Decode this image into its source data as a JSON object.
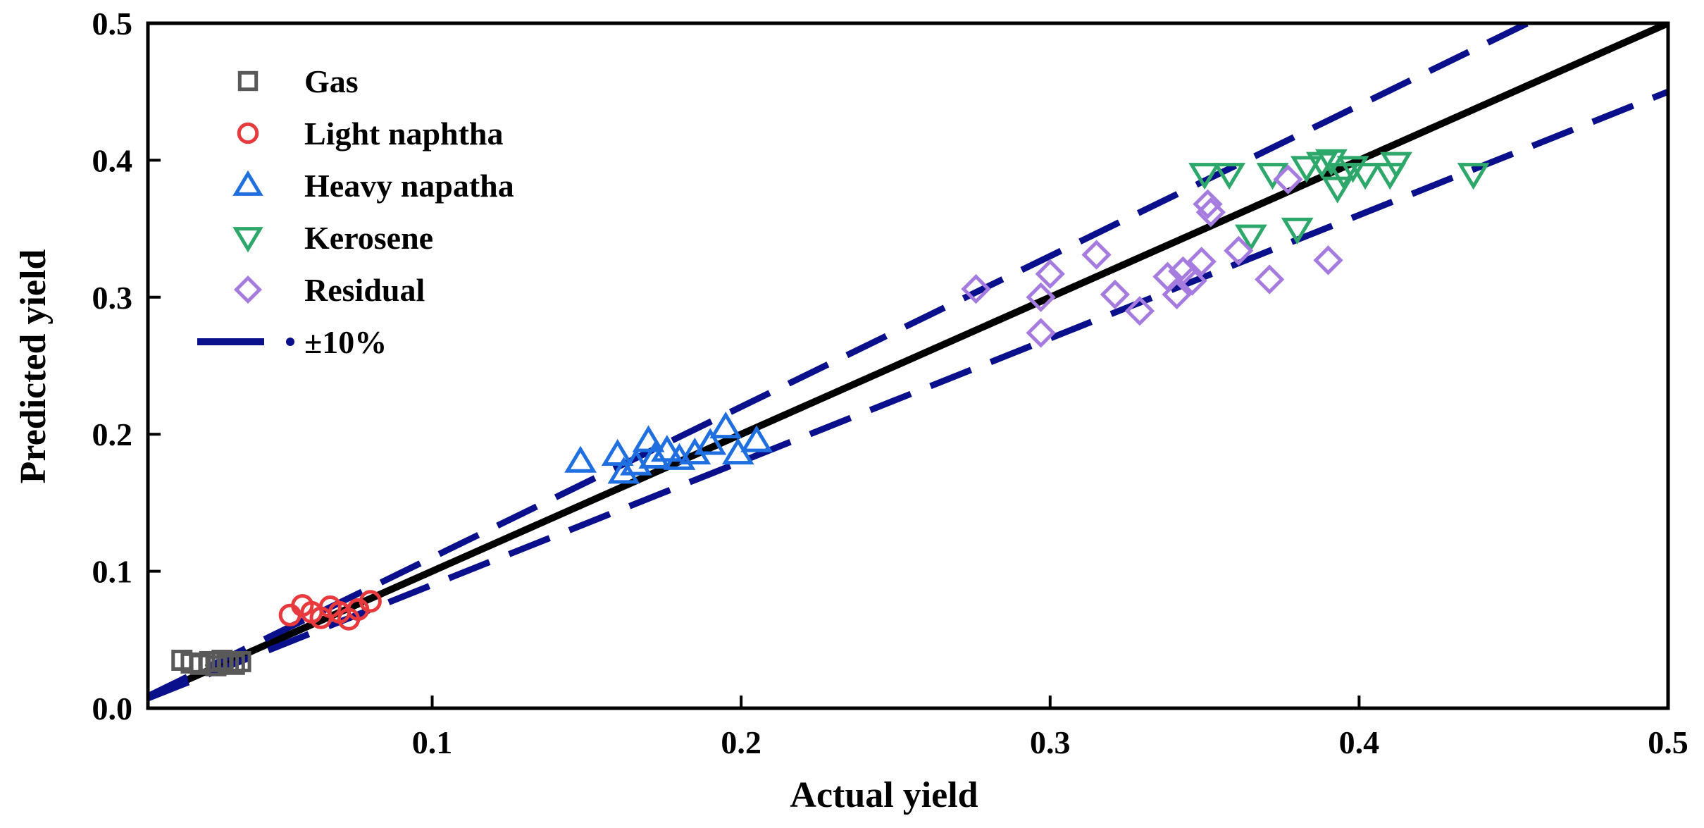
{
  "chart_data": {
    "type": "scatter",
    "xlabel": "Actual yield",
    "ylabel": "Predicted yield",
    "xlim": [
      0.008,
      0.5
    ],
    "ylim": [
      0.0,
      0.5
    ],
    "xticks": [
      {
        "value": 0.1,
        "label": "0.1"
      },
      {
        "value": 0.2,
        "label": "0.2"
      },
      {
        "value": 0.3,
        "label": "0.3"
      },
      {
        "value": 0.4,
        "label": "0.4"
      },
      {
        "value": 0.5,
        "label": "0.5"
      }
    ],
    "yticks": [
      {
        "value": 0.0,
        "label": "0.0"
      },
      {
        "value": 0.1,
        "label": "0.1"
      },
      {
        "value": 0.2,
        "label": "0.2"
      },
      {
        "value": 0.3,
        "label": "0.3"
      },
      {
        "value": 0.4,
        "label": "0.4"
      },
      {
        "value": 0.5,
        "label": "0.5"
      }
    ],
    "legend_position": "top-left",
    "series": [
      {
        "name": "Gas",
        "marker": "square",
        "color": "#595959",
        "points": [
          [
            0.019,
            0.035
          ],
          [
            0.022,
            0.033
          ],
          [
            0.025,
            0.032
          ],
          [
            0.028,
            0.034
          ],
          [
            0.03,
            0.031
          ],
          [
            0.032,
            0.035
          ],
          [
            0.034,
            0.033
          ],
          [
            0.036,
            0.032
          ],
          [
            0.038,
            0.034
          ]
        ]
      },
      {
        "name": "Light naphtha",
        "marker": "circle",
        "color": "#e8393c",
        "points": [
          [
            0.054,
            0.068
          ],
          [
            0.058,
            0.075
          ],
          [
            0.061,
            0.07
          ],
          [
            0.064,
            0.066
          ],
          [
            0.067,
            0.074
          ],
          [
            0.07,
            0.07
          ],
          [
            0.073,
            0.065
          ],
          [
            0.076,
            0.072
          ],
          [
            0.08,
            0.078
          ]
        ]
      },
      {
        "name": "Heavy napatha",
        "marker": "triangle-up",
        "color": "#1f6fe0",
        "points": [
          [
            0.148,
            0.18
          ],
          [
            0.16,
            0.185
          ],
          [
            0.162,
            0.172
          ],
          [
            0.166,
            0.178
          ],
          [
            0.17,
            0.195
          ],
          [
            0.172,
            0.183
          ],
          [
            0.176,
            0.188
          ],
          [
            0.18,
            0.182
          ],
          [
            0.185,
            0.186
          ],
          [
            0.19,
            0.193
          ],
          [
            0.195,
            0.205
          ],
          [
            0.199,
            0.186
          ],
          [
            0.205,
            0.195
          ]
        ]
      },
      {
        "name": "Kerosene",
        "marker": "triangle-down",
        "color": "#2ea86a",
        "points": [
          [
            0.35,
            0.39
          ],
          [
            0.358,
            0.39
          ],
          [
            0.365,
            0.345
          ],
          [
            0.372,
            0.39
          ],
          [
            0.38,
            0.35
          ],
          [
            0.383,
            0.395
          ],
          [
            0.388,
            0.398
          ],
          [
            0.391,
            0.4
          ],
          [
            0.393,
            0.38
          ],
          [
            0.395,
            0.39
          ],
          [
            0.398,
            0.395
          ],
          [
            0.402,
            0.39
          ],
          [
            0.41,
            0.39
          ],
          [
            0.412,
            0.398
          ],
          [
            0.437,
            0.39
          ]
        ]
      },
      {
        "name": "Residual",
        "marker": "diamond",
        "color": "#a67be0",
        "points": [
          [
            0.276,
            0.306
          ],
          [
            0.297,
            0.274
          ],
          [
            0.297,
            0.3
          ],
          [
            0.3,
            0.317
          ],
          [
            0.315,
            0.331
          ],
          [
            0.321,
            0.302
          ],
          [
            0.329,
            0.29
          ],
          [
            0.338,
            0.315
          ],
          [
            0.341,
            0.302
          ],
          [
            0.343,
            0.319
          ],
          [
            0.346,
            0.312
          ],
          [
            0.349,
            0.326
          ],
          [
            0.351,
            0.368
          ],
          [
            0.352,
            0.362
          ],
          [
            0.361,
            0.334
          ],
          [
            0.371,
            0.313
          ],
          [
            0.377,
            0.386
          ],
          [
            0.39,
            0.327
          ]
        ]
      }
    ],
    "reference_lines": [
      {
        "name": "y = x",
        "points": [
          [
            0.008,
            0.008
          ],
          [
            0.5,
            0.5
          ]
        ],
        "color": "#000000",
        "style": "solid"
      },
      {
        "name": "±10%",
        "points": [
          [
            0.008,
            0.0088
          ],
          [
            0.4545,
            0.5
          ]
        ],
        "color": "#0a0f8c",
        "style": "dashed"
      },
      {
        "name": "±10% lower",
        "points": [
          [
            0.008,
            0.0072
          ],
          [
            0.5,
            0.45
          ]
        ],
        "color": "#0a0f8c",
        "style": "dashed"
      }
    ],
    "legend": [
      {
        "label": "Gas",
        "marker": "square",
        "color": "#595959"
      },
      {
        "label": "Light naphtha",
        "marker": "circle",
        "color": "#e8393c"
      },
      {
        "label": "Heavy napatha",
        "marker": "triangle-up",
        "color": "#1f6fe0"
      },
      {
        "label": "Kerosene",
        "marker": "triangle-down",
        "color": "#2ea86a"
      },
      {
        "label": "Residual",
        "marker": "diamond",
        "color": "#a67be0"
      },
      {
        "label": "±10%",
        "marker": "dash",
        "color": "#0a0f8c"
      }
    ]
  }
}
